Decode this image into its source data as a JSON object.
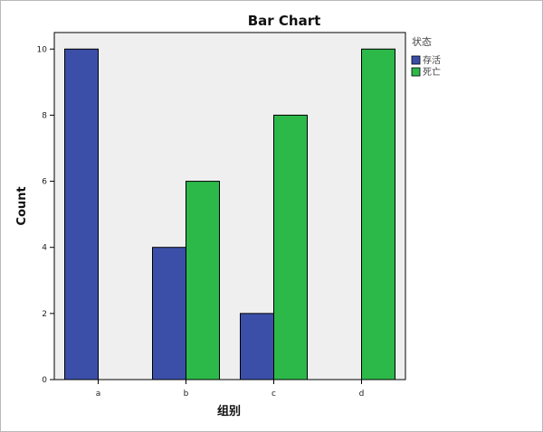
{
  "chart_data": {
    "type": "bar",
    "title": "Bar Chart",
    "xlabel": "组别",
    "ylabel": "Count",
    "categories": [
      "a",
      "b",
      "c",
      "d"
    ],
    "series": [
      {
        "name": "存活",
        "values": [
          10,
          4,
          2,
          0
        ]
      },
      {
        "name": "死亡",
        "values": [
          0,
          6,
          8,
          10
        ]
      }
    ],
    "ylim": [
      0,
      10.5
    ],
    "yticks": [
      0,
      2,
      4,
      6,
      8,
      10
    ],
    "legend": {
      "title": "状态",
      "position": "top-right"
    },
    "colors": {
      "series": [
        "#3b4fa8",
        "#2db84a"
      ],
      "plot_bg": "#efefef",
      "bar_stroke": "#000000"
    },
    "grid": false
  }
}
